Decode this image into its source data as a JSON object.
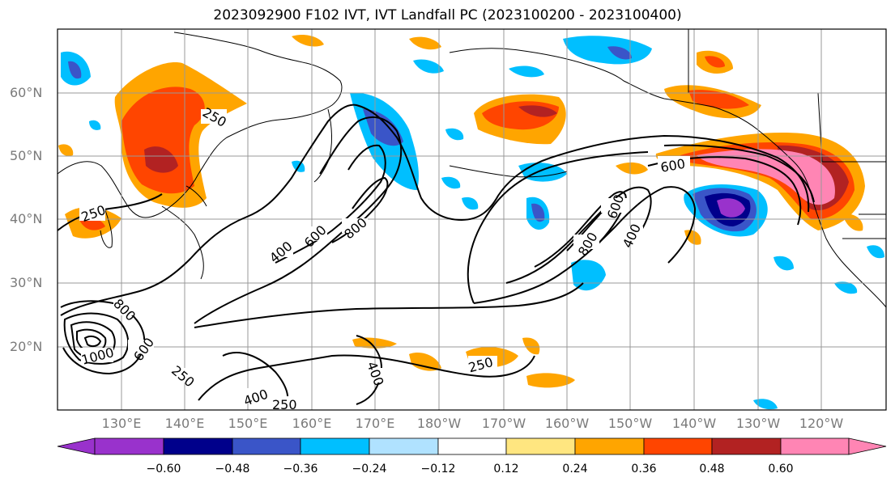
{
  "title": "2023092900 F102 IVT, IVT Landfall PC (2023100200 - 2023100400)",
  "lat_labels": [
    "60°N",
    "50°N",
    "40°N",
    "30°N",
    "20°N"
  ],
  "lon_labels": [
    "130°E",
    "140°E",
    "150°E",
    "160°E",
    "170°E",
    "180°W",
    "170°W",
    "160°W",
    "150°W",
    "140°W",
    "130°W",
    "120°W"
  ],
  "contour_labels": [
    "250",
    "250",
    "400",
    "600",
    "800",
    "600",
    "800",
    "1000",
    "250",
    "400",
    "250",
    "250",
    "400",
    "600",
    "800",
    "600",
    "400"
  ],
  "colorbar": {
    "ticks": [
      "−0.60",
      "−0.48",
      "−0.36",
      "−0.24",
      "−0.12",
      "0.12",
      "0.24",
      "0.36",
      "0.48",
      "0.60"
    ],
    "colors": [
      "#9932cc",
      "#00008b",
      "#3a55c8",
      "#00bfff",
      "#b0e2ff",
      "#ffffff",
      "#ffe680",
      "#ffa500",
      "#ff4500",
      "#b22222",
      "#ff85b4"
    ]
  }
}
